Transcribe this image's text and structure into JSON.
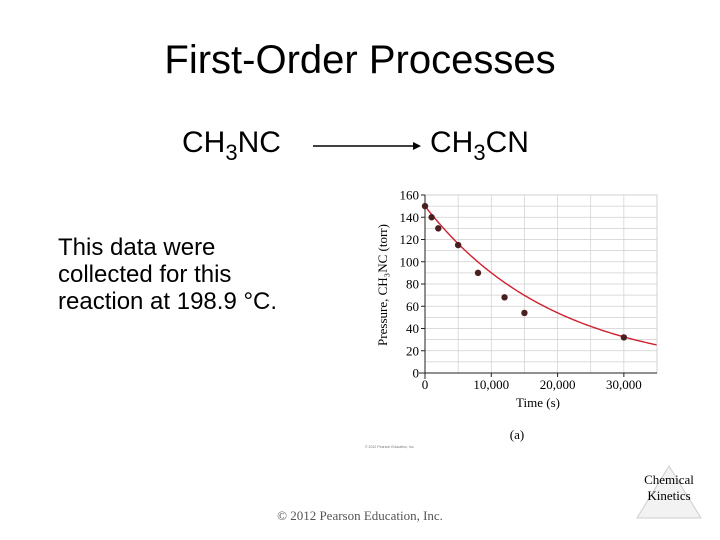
{
  "slide": {
    "title": "First-Order Processes",
    "reactant": {
      "base": "CH",
      "sub": "3",
      "rest": "NC"
    },
    "product": {
      "base": "CH",
      "sub": "3",
      "rest": "CN"
    },
    "description_lines": [
      "This data were",
      "collected for this",
      "reaction at 198.9 °C."
    ],
    "copyright": "© 2012 Pearson Education, Inc.",
    "badge_lines": [
      "Chemical",
      "Kinetics"
    ]
  },
  "chart_data": {
    "type": "scatter",
    "xlabel": "Time (s)",
    "ylabel": "Pressure, CH₃NC (torr)",
    "panel_label": "(a)",
    "xlim": [
      0,
      35000
    ],
    "ylim": [
      0,
      160
    ],
    "x_ticks": [
      0,
      10000,
      20000,
      30000
    ],
    "x_tick_labels": [
      "0",
      "10,000",
      "20,000",
      "30,000"
    ],
    "y_ticks": [
      0,
      20,
      40,
      60,
      80,
      100,
      120,
      140,
      160
    ],
    "y_tick_labels": [
      "0",
      "20",
      "40",
      "60",
      "80",
      "100",
      "120",
      "140",
      "160"
    ],
    "grid": true,
    "series": [
      {
        "x": [
          0,
          1000,
          2000,
          5000,
          8000,
          12000,
          15000,
          30000
        ],
        "y": [
          150,
          140,
          130,
          115,
          90,
          68,
          54,
          32
        ]
      }
    ],
    "fit_curve": {
      "initial": 150,
      "k": 5.1e-05
    },
    "colors": {
      "points": "#4a1f1f",
      "curve": "#d0202e",
      "grid": "#cfcfcf"
    },
    "small_print": "© 2012 Pearson Education, Inc."
  }
}
